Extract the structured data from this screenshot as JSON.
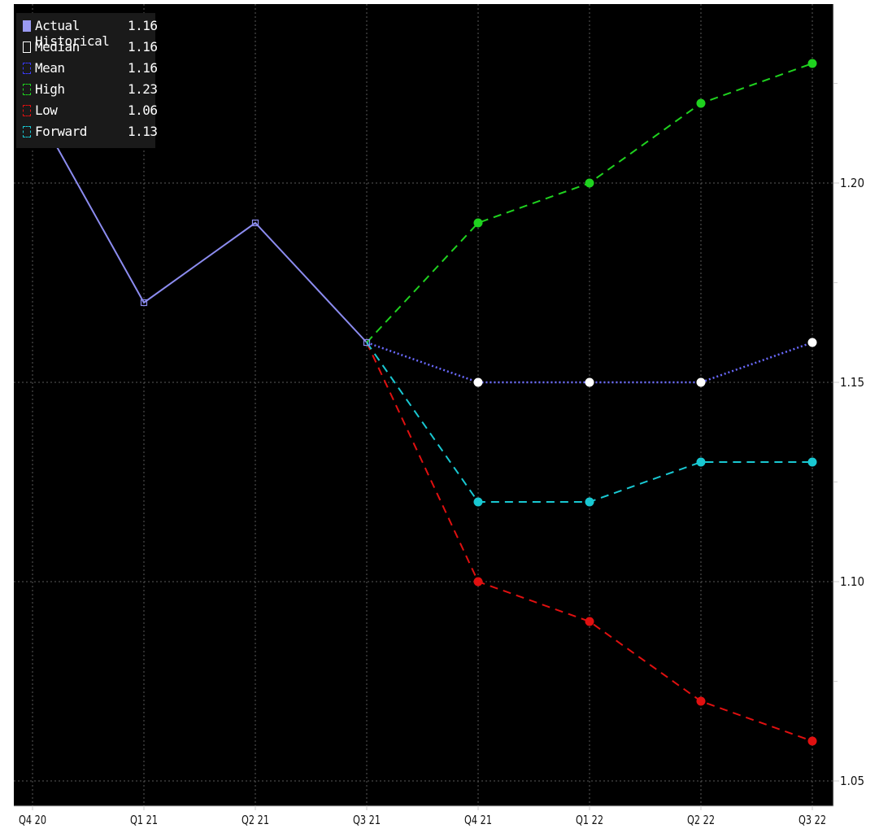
{
  "chart_data": {
    "type": "line",
    "categories": [
      "Q4 20",
      "Q1 21",
      "Q2 21",
      "Q3 21",
      "Q4 21",
      "Q1 22",
      "Q2 22",
      "Q3 22"
    ],
    "ylim": [
      1.04,
      1.25
    ],
    "yticks": [
      1.05,
      1.1,
      1.15,
      1.2
    ],
    "ytick_labels": [
      "1.05",
      "1.10",
      "1.15",
      "1.20"
    ],
    "grid": true,
    "legend_position": "top-left",
    "series": [
      {
        "name": "Actual Historical",
        "legend_value": "1.16",
        "color": "#8c8cf0",
        "style": "solid",
        "marker": "open-square",
        "values": [
          1.22,
          1.17,
          1.19,
          1.16,
          null,
          null,
          null,
          null
        ]
      },
      {
        "name": "Median",
        "legend_value": "1.16",
        "color": "#ffffff",
        "style": "none",
        "marker": "dot",
        "values": [
          null,
          null,
          null,
          null,
          1.15,
          1.15,
          1.15,
          1.16
        ]
      },
      {
        "name": "Mean",
        "legend_value": "1.16",
        "color": "#6a6aff",
        "style": "dotted",
        "marker": "none",
        "values": [
          null,
          null,
          null,
          1.16,
          1.15,
          1.15,
          1.15,
          1.16
        ]
      },
      {
        "name": "High",
        "legend_value": "1.23",
        "color": "#1fd21f",
        "style": "dashed",
        "marker": "dot",
        "values": [
          null,
          null,
          null,
          1.16,
          1.19,
          1.2,
          1.22,
          1.23
        ]
      },
      {
        "name": "Low",
        "legend_value": "1.06",
        "color": "#e01010",
        "style": "dashed",
        "marker": "dot",
        "values": [
          null,
          null,
          null,
          1.16,
          1.1,
          1.09,
          1.07,
          1.06
        ]
      },
      {
        "name": "Forward",
        "legend_value": "1.13",
        "color": "#19c8d2",
        "style": "dashed",
        "marker": "dot",
        "values": [
          null,
          null,
          null,
          1.16,
          1.12,
          1.12,
          1.13,
          1.13
        ]
      }
    ]
  }
}
